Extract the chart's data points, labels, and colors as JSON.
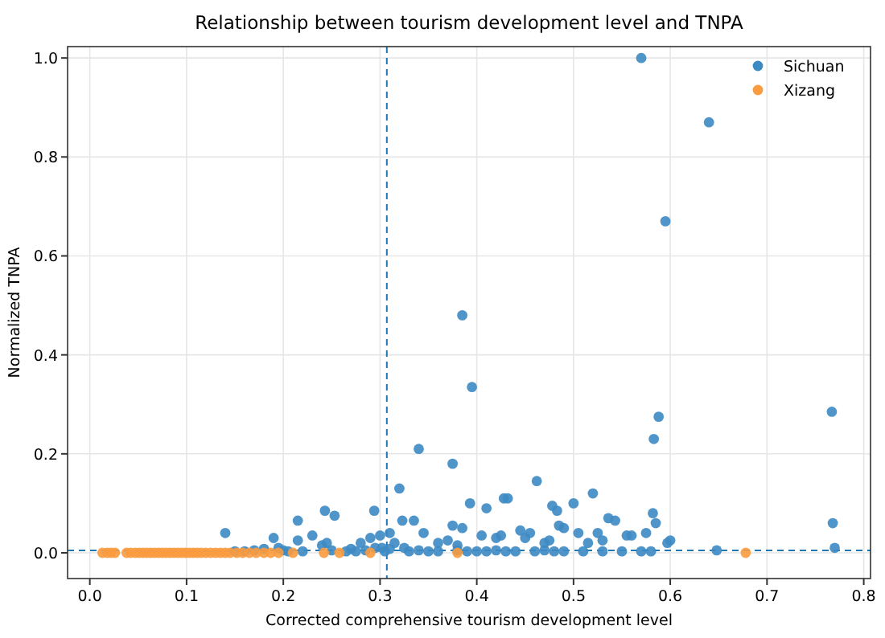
{
  "chart_data": {
    "type": "scatter",
    "title": "Relationship between tourism development level and TNPA",
    "xlabel": "Corrected comprehensive tourism development level",
    "ylabel": "Normalized TNPA",
    "xlim": [
      -0.023,
      0.807
    ],
    "ylim": [
      -0.052,
      1.023
    ],
    "xticks": [
      {
        "value": 0,
        "label": "0.0"
      },
      0.1,
      0.2,
      0.3,
      0.4,
      0.5,
      0.6,
      0.7,
      {
        "value": 0.8,
        "label": "0.8"
      }
    ],
    "yticks": [
      {
        "value": 0,
        "label": "0.0"
      },
      0.2,
      0.4,
      0.6,
      0.8,
      {
        "value": 1,
        "label": "1.0"
      }
    ],
    "grid": true,
    "legend": "top right",
    "marker": "circle",
    "ref_lines": [
      {
        "axis": "x",
        "value": 0.307,
        "color": "#1f77b4",
        "line_style": "dashed"
      },
      {
        "axis": "y",
        "value": 0.005,
        "color": "#1f77b4",
        "line_style": "dashed"
      }
    ],
    "series": [
      {
        "name": "Sichuan",
        "color": "#3d8ac3",
        "x": [
          0.57,
          0.64,
          0.595,
          0.385,
          0.395,
          0.588,
          0.767,
          0.583,
          0.34,
          0.375,
          0.462,
          0.14,
          0.215,
          0.243,
          0.253,
          0.294,
          0.32,
          0.393,
          0.428,
          0.432,
          0.41,
          0.5,
          0.52,
          0.478,
          0.483,
          0.536,
          0.543,
          0.582,
          0.585,
          0.768,
          0.77,
          0.648,
          0.323,
          0.335,
          0.375,
          0.385,
          0.345,
          0.19,
          0.215,
          0.23,
          0.24,
          0.245,
          0.28,
          0.29,
          0.3,
          0.31,
          0.302,
          0.315,
          0.325,
          0.36,
          0.37,
          0.38,
          0.405,
          0.42,
          0.425,
          0.445,
          0.45,
          0.455,
          0.47,
          0.475,
          0.485,
          0.49,
          0.505,
          0.525,
          0.515,
          0.53,
          0.555,
          0.56,
          0.575,
          0.597,
          0.6,
          0.15,
          0.16,
          0.17,
          0.18,
          0.195,
          0.2,
          0.205,
          0.22,
          0.25,
          0.265,
          0.27,
          0.275,
          0.285,
          0.295,
          0.305,
          0.31,
          0.33,
          0.34,
          0.35,
          0.36,
          0.38,
          0.39,
          0.4,
          0.41,
          0.42,
          0.43,
          0.44,
          0.46,
          0.47,
          0.48,
          0.49,
          0.51,
          0.53,
          0.55,
          0.57,
          0.58
        ],
        "values": [
          1.0,
          0.87,
          0.67,
          0.48,
          0.335,
          0.275,
          0.285,
          0.23,
          0.21,
          0.18,
          0.145,
          0.04,
          0.065,
          0.085,
          0.075,
          0.085,
          0.13,
          0.1,
          0.11,
          0.11,
          0.09,
          0.1,
          0.12,
          0.095,
          0.085,
          0.07,
          0.065,
          0.08,
          0.06,
          0.06,
          0.01,
          0.005,
          0.065,
          0.065,
          0.055,
          0.05,
          0.04,
          0.03,
          0.025,
          0.035,
          0.015,
          0.02,
          0.02,
          0.03,
          0.035,
          0.04,
          0.01,
          0.02,
          0.01,
          0.02,
          0.025,
          0.015,
          0.035,
          0.03,
          0.035,
          0.045,
          0.03,
          0.04,
          0.02,
          0.025,
          0.055,
          0.05,
          0.04,
          0.04,
          0.02,
          0.025,
          0.035,
          0.035,
          0.04,
          0.02,
          0.025,
          0.003,
          0.003,
          0.005,
          0.008,
          0.01,
          0.005,
          0.003,
          0.003,
          0.005,
          0.003,
          0.008,
          0.003,
          0.005,
          0.01,
          0.003,
          0.008,
          0.003,
          0.005,
          0.003,
          0.003,
          0.005,
          0.003,
          0.003,
          0.003,
          0.005,
          0.003,
          0.003,
          0.003,
          0.005,
          0.003,
          0.003,
          0.003,
          0.003,
          0.003,
          0.003,
          0.003
        ]
      },
      {
        "name": "Xizang",
        "color": "#f99b3f",
        "x": [
          0.013,
          0.018,
          0.022,
          0.026,
          0.038,
          0.042,
          0.047,
          0.051,
          0.055,
          0.059,
          0.063,
          0.067,
          0.071,
          0.075,
          0.079,
          0.083,
          0.087,
          0.091,
          0.095,
          0.099,
          0.103,
          0.107,
          0.111,
          0.115,
          0.12,
          0.125,
          0.13,
          0.135,
          0.14,
          0.145,
          0.152,
          0.158,
          0.165,
          0.172,
          0.18,
          0.187,
          0.195,
          0.21,
          0.242,
          0.258,
          0.29,
          0.38,
          0.678
        ],
        "values": [
          0,
          0,
          0,
          0,
          0,
          0,
          0,
          0,
          0,
          0,
          0,
          0,
          0,
          0,
          0,
          0,
          0,
          0,
          0,
          0,
          0,
          0,
          0,
          0,
          0,
          0,
          0,
          0,
          0,
          0,
          0,
          0,
          0,
          0,
          0,
          0,
          0,
          0,
          0,
          0,
          0,
          0,
          0
        ]
      }
    ]
  }
}
